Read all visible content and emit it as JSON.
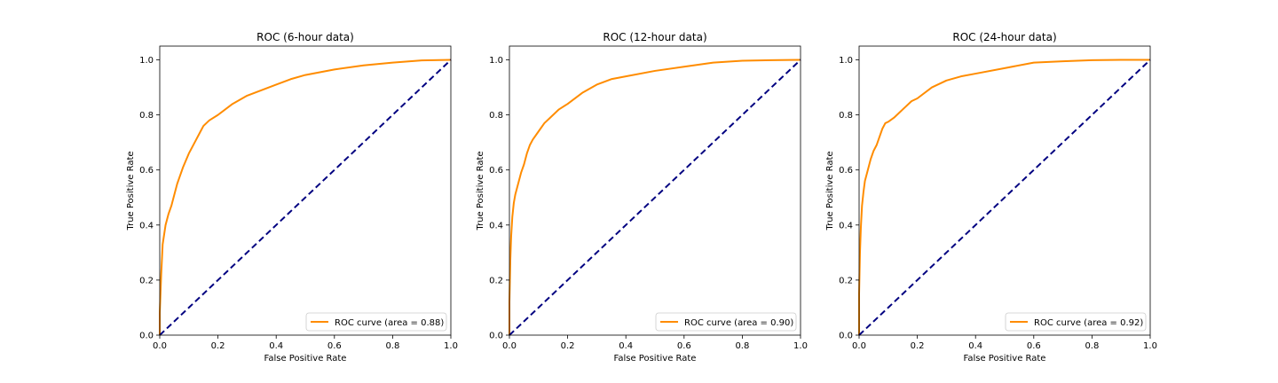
{
  "chart_data": [
    {
      "type": "line",
      "title": "ROC (6-hour data)",
      "xlabel": "False Positive Rate",
      "ylabel": "True Positive Rate",
      "xlim": [
        0.0,
        1.0
      ],
      "ylim": [
        0.0,
        1.05
      ],
      "x_ticks": [
        "0.0",
        "0.2",
        "0.4",
        "0.6",
        "0.8",
        "1.0"
      ],
      "y_ticks": [
        "0.0",
        "0.2",
        "0.4",
        "0.6",
        "0.8",
        "1.0"
      ],
      "legend_position": "lower-right",
      "grid": false,
      "series": [
        {
          "name": "ROC curve (area = 0.88)",
          "color": "#ff8c00",
          "x": [
            0.0,
            0.0,
            0.005,
            0.01,
            0.02,
            0.03,
            0.04,
            0.05,
            0.06,
            0.07,
            0.08,
            0.1,
            0.12,
            0.14,
            0.15,
            0.17,
            0.2,
            0.25,
            0.3,
            0.35,
            0.4,
            0.45,
            0.5,
            0.55,
            0.6,
            0.7,
            0.8,
            0.9,
            1.0
          ],
          "y": [
            0.0,
            0.08,
            0.22,
            0.33,
            0.4,
            0.44,
            0.47,
            0.51,
            0.55,
            0.58,
            0.61,
            0.66,
            0.7,
            0.74,
            0.76,
            0.78,
            0.8,
            0.84,
            0.87,
            0.89,
            0.91,
            0.93,
            0.945,
            0.955,
            0.965,
            0.98,
            0.99,
            0.998,
            1.0
          ]
        },
        {
          "color": "#000080",
          "dashed": true,
          "x": [
            0.0,
            1.0
          ],
          "y": [
            0.0,
            1.0
          ]
        }
      ]
    },
    {
      "type": "line",
      "title": "ROC (12-hour data)",
      "xlabel": "False Positive Rate",
      "ylabel": "True Positive Rate",
      "xlim": [
        0.0,
        1.0
      ],
      "ylim": [
        0.0,
        1.05
      ],
      "x_ticks": [
        "0.0",
        "0.2",
        "0.4",
        "0.6",
        "0.8",
        "1.0"
      ],
      "y_ticks": [
        "0.0",
        "0.2",
        "0.4",
        "0.6",
        "0.8",
        "1.0"
      ],
      "legend_position": "lower-right",
      "grid": false,
      "series": [
        {
          "name": "ROC curve (area = 0.90)",
          "color": "#ff8c00",
          "x": [
            0.0,
            0.0,
            0.003,
            0.006,
            0.01,
            0.015,
            0.02,
            0.03,
            0.04,
            0.05,
            0.06,
            0.07,
            0.08,
            0.1,
            0.12,
            0.14,
            0.17,
            0.2,
            0.25,
            0.3,
            0.35,
            0.4,
            0.5,
            0.6,
            0.7,
            0.8,
            0.9,
            1.0
          ],
          "y": [
            0.0,
            0.12,
            0.27,
            0.36,
            0.43,
            0.48,
            0.51,
            0.55,
            0.59,
            0.62,
            0.66,
            0.69,
            0.71,
            0.74,
            0.77,
            0.79,
            0.82,
            0.84,
            0.88,
            0.91,
            0.93,
            0.94,
            0.96,
            0.975,
            0.99,
            0.997,
            0.999,
            1.0
          ]
        },
        {
          "color": "#000080",
          "dashed": true,
          "x": [
            0.0,
            1.0
          ],
          "y": [
            0.0,
            1.0
          ]
        }
      ]
    },
    {
      "type": "line",
      "title": "ROC (24-hour data)",
      "xlabel": "False Positive Rate",
      "ylabel": "True Positive Rate",
      "xlim": [
        0.0,
        1.0
      ],
      "ylim": [
        0.0,
        1.05
      ],
      "x_ticks": [
        "0.0",
        "0.2",
        "0.4",
        "0.6",
        "0.8",
        "1.0"
      ],
      "y_ticks": [
        "0.0",
        "0.2",
        "0.4",
        "0.6",
        "0.8",
        "1.0"
      ],
      "legend_position": "lower-right",
      "grid": false,
      "series": [
        {
          "name": "ROC curve (area = 0.92)",
          "color": "#ff8c00",
          "x": [
            0.0,
            0.0,
            0.003,
            0.006,
            0.01,
            0.015,
            0.02,
            0.03,
            0.04,
            0.05,
            0.06,
            0.07,
            0.08,
            0.09,
            0.1,
            0.12,
            0.14,
            0.16,
            0.18,
            0.2,
            0.25,
            0.3,
            0.35,
            0.4,
            0.5,
            0.6,
            0.7,
            0.8,
            0.9,
            1.0
          ],
          "y": [
            0.0,
            0.15,
            0.3,
            0.39,
            0.47,
            0.52,
            0.56,
            0.6,
            0.64,
            0.67,
            0.69,
            0.72,
            0.75,
            0.77,
            0.775,
            0.79,
            0.81,
            0.83,
            0.85,
            0.86,
            0.9,
            0.925,
            0.94,
            0.95,
            0.97,
            0.99,
            0.995,
            0.999,
            1.0,
            1.0
          ]
        },
        {
          "color": "#000080",
          "dashed": true,
          "x": [
            0.0,
            1.0
          ],
          "y": [
            0.0,
            1.0
          ]
        }
      ]
    }
  ]
}
